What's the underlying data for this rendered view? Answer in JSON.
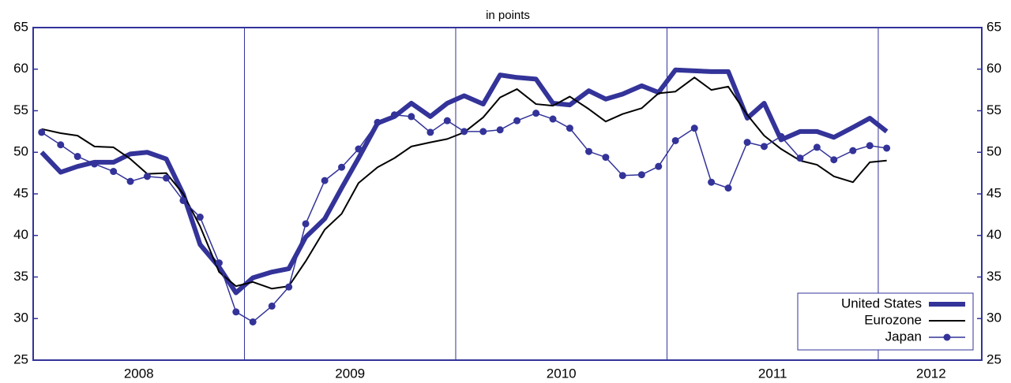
{
  "chart_data": {
    "type": "line",
    "title": "in points",
    "x": [
      2008.04,
      2008.13,
      2008.21,
      2008.29,
      2008.38,
      2008.46,
      2008.54,
      2008.63,
      2008.71,
      2008.79,
      2008.88,
      2008.96,
      2009.04,
      2009.13,
      2009.21,
      2009.29,
      2009.38,
      2009.46,
      2009.54,
      2009.63,
      2009.71,
      2009.79,
      2009.88,
      2009.96,
      2010.04,
      2010.13,
      2010.21,
      2010.29,
      2010.38,
      2010.46,
      2010.54,
      2010.63,
      2010.71,
      2010.79,
      2010.88,
      2010.96,
      2011.04,
      2011.13,
      2011.21,
      2011.29,
      2011.38,
      2011.46,
      2011.54,
      2011.63,
      2011.71,
      2011.79,
      2011.88,
      2011.96,
      2012.04
    ],
    "series": [
      {
        "name": "United States",
        "color": "#333399",
        "width": 6,
        "marker": false,
        "values": [
          50.0,
          47.6,
          48.3,
          48.8,
          48.8,
          49.8,
          50.0,
          49.2,
          45.0,
          38.9,
          36.2,
          33.1,
          34.9,
          35.6,
          36.0,
          39.8,
          42.0,
          45.7,
          49.3,
          53.5,
          54.3,
          55.9,
          54.3,
          55.9,
          56.8,
          55.8,
          59.3,
          59.0,
          58.8,
          55.9,
          55.7,
          57.4,
          56.4,
          57.0,
          58.0,
          57.2,
          59.9,
          59.8,
          59.7,
          59.7,
          54.1,
          55.9,
          51.5,
          52.5,
          52.5,
          51.8,
          53.0,
          54.1,
          52.5
        ]
      },
      {
        "name": "Eurozone",
        "color": "#000000",
        "width": 2,
        "marker": false,
        "values": [
          52.8,
          52.3,
          52.0,
          50.7,
          50.6,
          49.2,
          47.4,
          47.5,
          45.0,
          41.1,
          35.6,
          33.9,
          34.4,
          33.6,
          33.9,
          36.9,
          40.7,
          42.6,
          46.3,
          48.2,
          49.3,
          50.7,
          51.2,
          51.6,
          52.4,
          54.2,
          56.6,
          57.6,
          55.8,
          55.6,
          56.7,
          55.2,
          53.7,
          54.6,
          55.3,
          57.1,
          57.3,
          59.0,
          57.5,
          57.9,
          54.5,
          52.0,
          50.4,
          49.0,
          48.5,
          47.1,
          46.4,
          48.8,
          49.0
        ]
      },
      {
        "name": "Japan",
        "color": "#333399",
        "width": 1.5,
        "marker": true,
        "values": [
          52.4,
          50.9,
          49.5,
          48.6,
          47.7,
          46.5,
          47.1,
          46.9,
          44.2,
          42.2,
          36.7,
          30.8,
          29.6,
          31.5,
          33.8,
          41.4,
          46.6,
          48.2,
          50.4,
          53.6,
          54.5,
          54.3,
          52.4,
          53.8,
          52.5,
          52.5,
          52.7,
          53.8,
          54.7,
          54.0,
          52.9,
          50.1,
          49.4,
          47.2,
          47.3,
          48.3,
          51.4,
          52.9,
          46.4,
          45.7,
          51.2,
          50.7,
          51.9,
          49.3,
          50.6,
          49.1,
          50.2,
          50.8,
          50.5
        ]
      }
    ],
    "xlim": [
      2008,
      2012.49
    ],
    "xticks": [
      {
        "value": 2008.5,
        "label": "2008"
      },
      {
        "value": 2009.5,
        "label": "2009"
      },
      {
        "value": 2010.5,
        "label": "2010"
      },
      {
        "value": 2011.5,
        "label": "2011"
      },
      {
        "value": 2012.25,
        "label": "2012"
      }
    ],
    "xgrid": [
      2009,
      2010,
      2011,
      2012
    ],
    "ylim": [
      25,
      65
    ],
    "yticks": [
      25,
      30,
      35,
      40,
      45,
      50,
      55,
      60,
      65
    ],
    "right_axis": true,
    "legend": "lower right"
  }
}
